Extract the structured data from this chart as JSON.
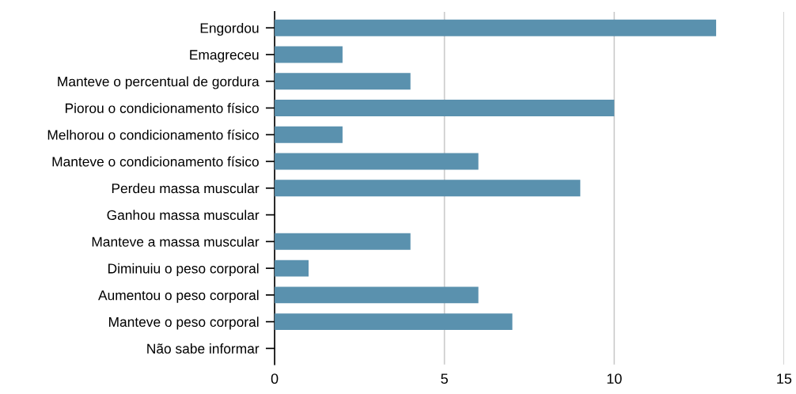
{
  "chart_data": {
    "type": "bar",
    "orientation": "horizontal",
    "categories": [
      "Engordou",
      "Emagreceu",
      "Manteve o percentual de gordura",
      "Piorou o condicionamento físico",
      "Melhorou o condicionamento físico",
      "Manteve o condicionamento físico",
      "Perdeu massa muscular",
      "Ganhou massa muscular",
      "Manteve a massa muscular",
      "Diminuiu o peso corporal",
      "Aumentou o peso corporal",
      "Manteve o peso corporal",
      "Não sabe informar"
    ],
    "values": [
      13,
      2,
      4,
      10,
      2,
      6,
      9,
      0,
      4,
      1,
      6,
      7,
      0
    ],
    "color": "#5a91ae",
    "xlim": [
      0,
      15
    ],
    "xticks": [
      0,
      5,
      10,
      15
    ],
    "grid": "x"
  }
}
